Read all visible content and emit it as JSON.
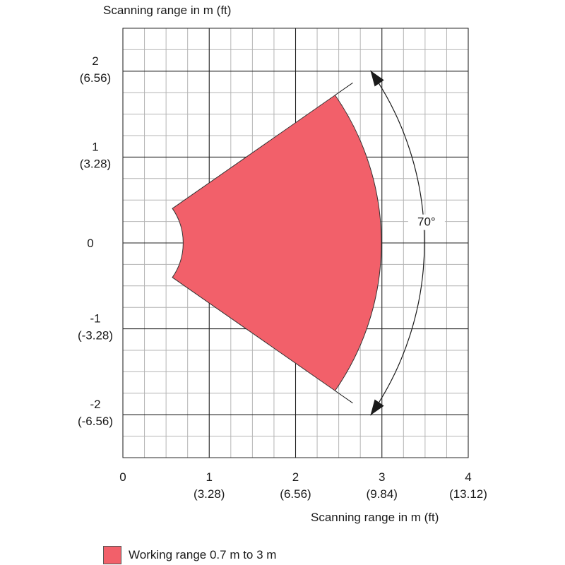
{
  "chart_data": {
    "type": "area",
    "title": "",
    "ylabel_top": "Scanning range in m (ft)",
    "xlabel": "Scanning range in m (ft)",
    "xlim": [
      0,
      4
    ],
    "ylim": [
      -2.5,
      2.5
    ],
    "major_grid_step": 1,
    "minor_grid_step": 0.25,
    "grid": true,
    "x_ticks": [
      {
        "value": 0,
        "label": "0",
        "sublabel": ""
      },
      {
        "value": 1,
        "label": "1",
        "sublabel": "(3.28)"
      },
      {
        "value": 2,
        "label": "2",
        "sublabel": "(6.56)"
      },
      {
        "value": 3,
        "label": "3",
        "sublabel": "(9.84)"
      },
      {
        "value": 4,
        "label": "4",
        "sublabel": "(13.12)"
      }
    ],
    "y_ticks": [
      {
        "value": 2,
        "label": "2",
        "sublabel": "(6.56)"
      },
      {
        "value": 1,
        "label": "1",
        "sublabel": "(3.28)"
      },
      {
        "value": 0,
        "label": "0",
        "sublabel": ""
      },
      {
        "value": -1,
        "label": "-1",
        "sublabel": "(-3.28)"
      },
      {
        "value": -2,
        "label": "-2",
        "sublabel": "(-6.56)"
      }
    ],
    "sector": {
      "inner_radius_m": 0.7,
      "outer_radius_m": 3,
      "half_angle_deg": 35,
      "color": "#f2606a"
    },
    "annotation": {
      "text": "70°",
      "angle_deg": 70
    },
    "legend": {
      "placement": "bottom-left",
      "entries": [
        {
          "label": "Working range 0.7 m to 3 m",
          "color": "#f2606a"
        }
      ]
    }
  }
}
